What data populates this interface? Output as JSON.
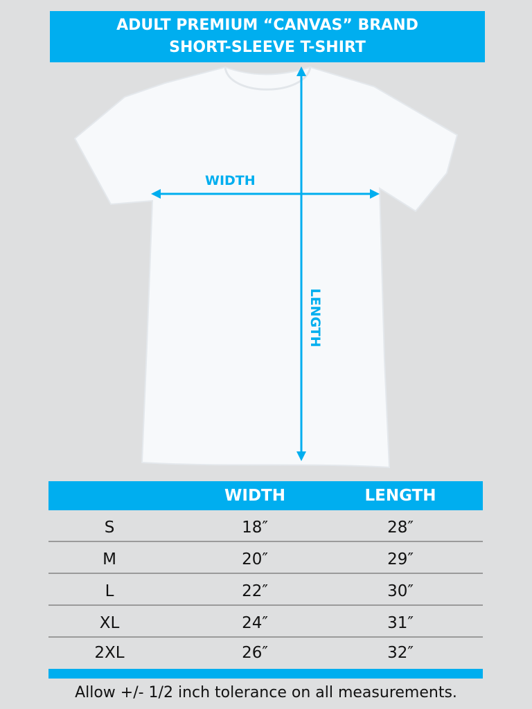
{
  "title": {
    "line1": "ADULT PREMIUM “CANVAS” BRAND",
    "line2": "SHORT-SLEEVE T-SHIRT"
  },
  "diagram": {
    "width_label": "WIDTH",
    "length_label": "LENGTH",
    "shirt_icon": "t-shirt-icon"
  },
  "table": {
    "headers": [
      "",
      "WIDTH",
      "LENGTH"
    ],
    "rows": [
      {
        "size": "S",
        "width": "18″",
        "length": "28″"
      },
      {
        "size": "M",
        "width": "20″",
        "length": "29″"
      },
      {
        "size": "L",
        "width": "22″",
        "length": "30″"
      },
      {
        "size": "XL",
        "width": "24″",
        "length": "31″"
      },
      {
        "size": "2XL",
        "width": "26″",
        "length": "32″"
      }
    ]
  },
  "footer": "Allow +/- 1/2 inch tolerance on all measurements.",
  "colors": {
    "accent": "#00aeef",
    "background": "#dedfe0"
  }
}
